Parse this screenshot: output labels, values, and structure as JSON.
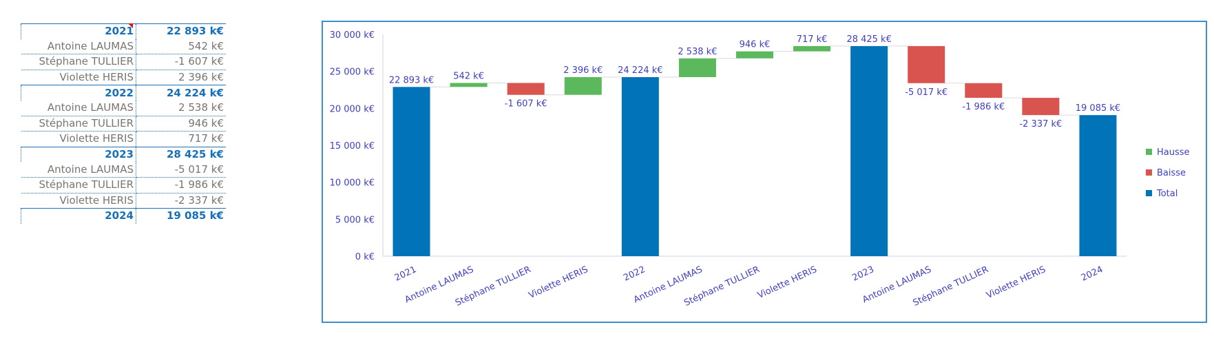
{
  "table": [
    {
      "label": "2021",
      "value": "22 893 k€",
      "total": true
    },
    {
      "label": "Antoine LAUMAS",
      "value": "542 k€"
    },
    {
      "label": "Stéphane TULLIER",
      "value": "-1 607 k€"
    },
    {
      "label": "Violette HERIS",
      "value": "2 396 k€"
    },
    {
      "label": "2022",
      "value": "24 224 k€",
      "total": true
    },
    {
      "label": "Antoine LAUMAS",
      "value": "2 538 k€"
    },
    {
      "label": "Stéphane TULLIER",
      "value": "946 k€"
    },
    {
      "label": "Violette HERIS",
      "value": "717 k€"
    },
    {
      "label": "2023",
      "value": "28 425 k€",
      "total": true
    },
    {
      "label": "Antoine LAUMAS",
      "value": "-5 017 k€"
    },
    {
      "label": "Stéphane TULLIER",
      "value": "-1 986 k€"
    },
    {
      "label": "Violette HERIS",
      "value": "-2 337 k€"
    },
    {
      "label": "2024",
      "value": "19 085 k€",
      "total": true
    }
  ],
  "chart_data": {
    "type": "bar",
    "subtype": "waterfall",
    "categories": [
      "2021",
      "Antoine LAUMAS",
      "Stéphane TULLIER",
      "Violette HERIS",
      "2022",
      "Antoine LAUMAS",
      "Stéphane TULLIER",
      "Violette HERIS",
      "2023",
      "Antoine LAUMAS",
      "Stéphane TULLIER",
      "Violette HERIS",
      "2024"
    ],
    "values": [
      22893,
      542,
      -1607,
      2396,
      24224,
      2538,
      946,
      717,
      28425,
      -5017,
      -1986,
      -2337,
      19085
    ],
    "is_total": [
      true,
      false,
      false,
      false,
      true,
      false,
      false,
      false,
      true,
      false,
      false,
      false,
      true
    ],
    "data_labels": [
      "22 893  k€",
      "542  k€",
      "-1 607  k€",
      "2 396  k€",
      "24 224  k€",
      "2 538  k€",
      "946  k€",
      "717  k€",
      "28 425  k€",
      "-5 017  k€",
      "-1 986  k€",
      "-2 337  k€",
      "19 085  k€"
    ],
    "ylim": [
      0,
      30000
    ],
    "yticks": [
      0,
      5000,
      10000,
      15000,
      20000,
      25000,
      30000
    ],
    "ytick_labels": [
      "0  k€",
      "5 000  k€",
      "10 000  k€",
      "15 000  k€",
      "20 000  k€",
      "25 000  k€",
      "30 000  k€"
    ],
    "legend": {
      "position": "right",
      "entries": [
        {
          "name": "Hausse",
          "color": "#5cb85c"
        },
        {
          "name": "Baisse",
          "color": "#d9534f"
        },
        {
          "name": "Total",
          "color": "#0073b9"
        }
      ]
    },
    "grid": false
  }
}
